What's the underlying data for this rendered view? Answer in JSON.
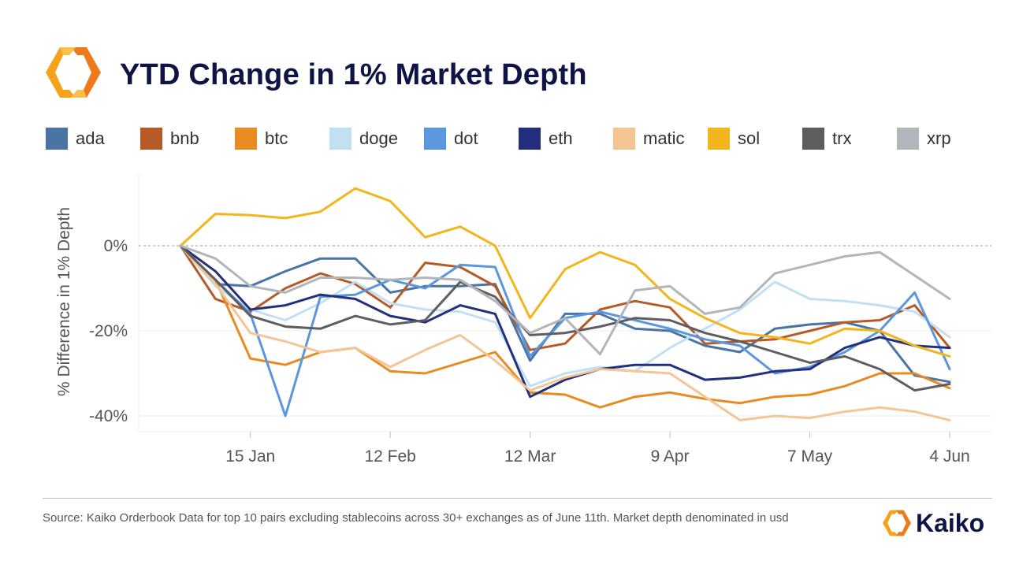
{
  "header": {
    "title": "YTD Change in 1% Market Depth",
    "logo_icon": "kaiko-logo-icon"
  },
  "colors": {
    "title": "#0e1446",
    "logo_orange": "#f5a623",
    "logo_dark": "#e8711a"
  },
  "footer": {
    "source": "Source: Kaiko Orderbook Data for top 10 pairs excluding stablecoins across 30+ exchanges as of June 11th. Market depth denominated in usd",
    "brand": "Kaiko"
  },
  "chart_data": {
    "type": "line",
    "ylabel": "% Difference in 1% Depth",
    "xlabel": "",
    "x_ticks": [
      "15 Jan",
      "12 Feb",
      "12 Mar",
      "9 Apr",
      "7 May",
      "4 Jun"
    ],
    "y_ticks": [
      "0%",
      "-20%",
      "-40%"
    ],
    "ylim": [
      -44,
      17
    ],
    "grid": true,
    "legend_position": "top",
    "x": [
      "1 Jan",
      "8 Jan",
      "15 Jan",
      "22 Jan",
      "29 Jan",
      "5 Feb",
      "12 Feb",
      "19 Feb",
      "26 Feb",
      "4 Mar",
      "12 Mar",
      "18 Mar",
      "25 Mar",
      "1 Apr",
      "9 Apr",
      "15 Apr",
      "22 Apr",
      "29 Apr",
      "7 May",
      "13 May",
      "20 May",
      "27 May",
      "4 Jun"
    ],
    "series": [
      {
        "name": "ada",
        "color": "#4a74a3",
        "values": [
          0,
          -9,
          -9.5,
          -6,
          -3,
          -3,
          -11,
          -9.5,
          -9.5,
          -9,
          -27,
          -16,
          -16,
          -19.5,
          -20,
          -23.5,
          -25,
          -19.5,
          -18.5,
          -18,
          -20,
          -30.5,
          -32
        ]
      },
      {
        "name": "bnb",
        "color": "#b65a27",
        "values": [
          0,
          -12.5,
          -15.5,
          -10,
          -6.5,
          -9,
          -14.5,
          -4,
          -5,
          -9.5,
          -24.5,
          -23,
          -15,
          -13,
          -14.5,
          -23,
          -22.5,
          -22,
          -20,
          -18,
          -17.5,
          -14,
          -24
        ]
      },
      {
        "name": "btc",
        "color": "#e88b20",
        "values": [
          0,
          -8,
          -26.5,
          -28,
          -25,
          -24,
          -29.5,
          -30,
          -27.5,
          -25,
          -34.5,
          -35,
          -38,
          -35.5,
          -34.5,
          -36,
          -37,
          -35.5,
          -35,
          -33,
          -30,
          -30,
          -33.5
        ]
      },
      {
        "name": "doge",
        "color": "#c2e0f4",
        "values": [
          0,
          -9.5,
          -15,
          -17.5,
          -13.5,
          -8.5,
          -13.5,
          -15,
          -15.5,
          -18,
          -33,
          -30,
          -28.5,
          -29.5,
          -24,
          -19.5,
          -15,
          -8.5,
          -12.5,
          -13,
          -14,
          -15.5,
          -21.5
        ]
      },
      {
        "name": "dot",
        "color": "#5a97de",
        "values": [
          0,
          -8,
          -16,
          -40,
          -12,
          -11.5,
          -8,
          -10,
          -4.5,
          -5,
          -26,
          -17,
          -15.5,
          -17.5,
          -19.5,
          -22,
          -23.5,
          -30,
          -28.5,
          -25,
          -20,
          -11,
          -29
        ]
      },
      {
        "name": "eth",
        "color": "#24307e",
        "values": [
          0,
          -6,
          -15,
          -14,
          -11.5,
          -12.5,
          -16.5,
          -18,
          -14,
          -16,
          -35.5,
          -31.5,
          -29,
          -28,
          -28,
          -31.5,
          -31,
          -29.5,
          -29,
          -24,
          -21.5,
          -23.5,
          -24
        ]
      },
      {
        "name": "matic",
        "color": "#f4c595",
        "values": [
          0,
          -9,
          -20.5,
          -22.5,
          -25,
          -24,
          -28.5,
          -24.5,
          -21,
          -27,
          -34,
          -31,
          -29,
          -29.5,
          -30,
          -35.5,
          -41,
          -40,
          -40.5,
          -39,
          -38,
          -39,
          -41
        ]
      },
      {
        "name": "sol",
        "color": "#f2b61c",
        "values": [
          0,
          7.5,
          7.2,
          6.5,
          8,
          13.5,
          10.5,
          2,
          4.5,
          0,
          -17,
          -5.5,
          -1.5,
          -4.5,
          -12.5,
          -17,
          -20.5,
          -21.5,
          -23,
          -19.5,
          -20,
          -23.5,
          -26
        ]
      },
      {
        "name": "trx",
        "color": "#5e5e60",
        "values": [
          0,
          -8,
          -16.5,
          -19,
          -19.5,
          -16.5,
          -18.5,
          -17.5,
          -8.5,
          -12,
          -21,
          -20.5,
          -19,
          -17,
          -17.5,
          -20.5,
          -22.5,
          -25,
          -27.5,
          -26,
          -29,
          -34,
          -32.5
        ]
      },
      {
        "name": "xrp",
        "color": "#b2b5bb",
        "values": [
          0,
          -3,
          -9.5,
          -11,
          -7.5,
          -7.5,
          -8,
          -7.5,
          -8,
          -13,
          -20.5,
          -17,
          -25.5,
          -10.5,
          -9.5,
          -16,
          -14.5,
          -6.5,
          -4.5,
          -2.5,
          -1.5,
          -7,
          -12.5
        ]
      }
    ]
  }
}
